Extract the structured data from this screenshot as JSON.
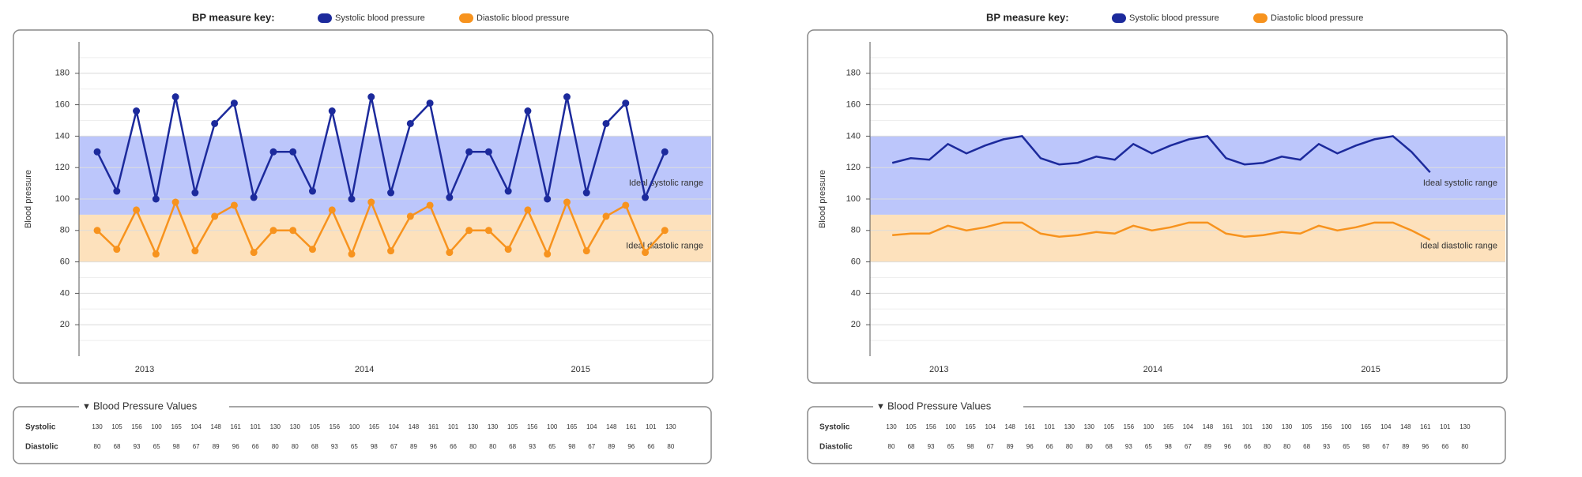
{
  "chart_data": [
    {
      "type": "line",
      "key_title": "BP measure key:",
      "ylabel": "Blood pressure",
      "markers": true,
      "ylim": [
        0,
        200
      ],
      "yticks": [
        20,
        40,
        60,
        80,
        100,
        120,
        140,
        160,
        180
      ],
      "xlim": [
        -0.93,
        31.37
      ],
      "xticks": [
        {
          "value": 2.42,
          "label": "2013"
        },
        {
          "value": 13.65,
          "label": "2014"
        },
        {
          "value": 24.7,
          "label": "2015"
        }
      ],
      "bands": [
        {
          "label": "Ideal systolic range",
          "range": [
            90,
            140
          ],
          "color": "#bcc6fb"
        },
        {
          "label": "Ideal diastolic range",
          "range": [
            60,
            90
          ],
          "color": "#fde1bc"
        }
      ],
      "series": [
        {
          "name": "Systolic blood pressure",
          "color": "#1c2a9c",
          "values": [
            130,
            105,
            156,
            100,
            165,
            104,
            148,
            161,
            101,
            130,
            130,
            105,
            156,
            100,
            165,
            104,
            148,
            161,
            101,
            130,
            130,
            105,
            156,
            100,
            165,
            104,
            148,
            161,
            101,
            130
          ]
        },
        {
          "name": "Diastolic blood pressure",
          "color": "#f7931e",
          "values": [
            80,
            68,
            93,
            65,
            98,
            67,
            89,
            96,
            66,
            80,
            80,
            68,
            93,
            65,
            98,
            67,
            89,
            96,
            66,
            80,
            80,
            68,
            93,
            65,
            98,
            67,
            89,
            96,
            66,
            80
          ]
        }
      ]
    },
    {
      "type": "line",
      "key_title": "BP measure key:",
      "ylabel": "Blood pressure",
      "markers": false,
      "ylim": [
        0,
        200
      ],
      "yticks": [
        20,
        40,
        60,
        80,
        100,
        120,
        140,
        160,
        180
      ],
      "xlim": [
        -1.2,
        33.06
      ],
      "xticks": [
        {
          "value": 2.52,
          "label": "2013"
        },
        {
          "value": 14.05,
          "label": "2014"
        },
        {
          "value": 25.8,
          "label": "2015"
        }
      ],
      "bands": [
        {
          "label": "Ideal systolic range",
          "range": [
            90,
            140
          ],
          "color": "#bcc6fb"
        },
        {
          "label": "Ideal diastolic range",
          "range": [
            60,
            90
          ],
          "color": "#fde1bc"
        }
      ],
      "series": [
        {
          "name": "Systolic blood pressure",
          "color": "#1c2a9c",
          "values": [
            123,
            126,
            125,
            135,
            129,
            134,
            138,
            140,
            126,
            122,
            123,
            127,
            125,
            135,
            129,
            134,
            138,
            140,
            126,
            122,
            123,
            127,
            125,
            135,
            129,
            134,
            138,
            140,
            130,
            117
          ]
        },
        {
          "name": "Diastolic blood pressure",
          "color": "#f7931e",
          "values": [
            77,
            78,
            78,
            83,
            80,
            82,
            85,
            85,
            78,
            76,
            77,
            79,
            78,
            83,
            80,
            82,
            85,
            85,
            78,
            76,
            77,
            79,
            78,
            83,
            80,
            82,
            85,
            85,
            80,
            74
          ]
        }
      ]
    }
  ],
  "tables": [
    {
      "title": "Blood Pressure Values",
      "rows": [
        {
          "label": "Systolic",
          "values": [
            130,
            105,
            156,
            100,
            165,
            104,
            148,
            161,
            101,
            130,
            130,
            105,
            156,
            100,
            165,
            104,
            148,
            161,
            101,
            130,
            130,
            105,
            156,
            100,
            165,
            104,
            148,
            161,
            101,
            130
          ]
        },
        {
          "label": "Diastolic",
          "values": [
            80,
            68,
            93,
            65,
            98,
            67,
            89,
            96,
            66,
            80,
            80,
            68,
            93,
            65,
            98,
            67,
            89,
            96,
            66,
            80,
            80,
            68,
            93,
            65,
            98,
            67,
            89,
            96,
            66,
            80
          ]
        }
      ]
    },
    {
      "title": "Blood Pressure Values",
      "rows": [
        {
          "label": "Systolic",
          "values": [
            130,
            105,
            156,
            100,
            165,
            104,
            148,
            161,
            101,
            130,
            130,
            105,
            156,
            100,
            165,
            104,
            148,
            161,
            101,
            130,
            130,
            105,
            156,
            100,
            165,
            104,
            148,
            161,
            101,
            130
          ]
        },
        {
          "label": "Diastolic",
          "values": [
            80,
            68,
            93,
            65,
            98,
            67,
            89,
            96,
            66,
            80,
            80,
            68,
            93,
            65,
            98,
            67,
            89,
            96,
            66,
            80,
            80,
            68,
            93,
            65,
            98,
            67,
            89,
            96,
            66,
            80
          ]
        }
      ]
    }
  ]
}
